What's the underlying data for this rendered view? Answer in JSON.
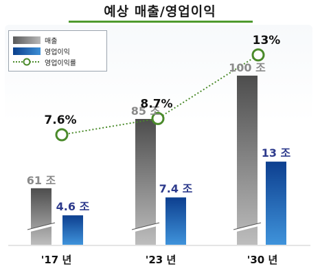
{
  "title": "예상 매출/영업이익",
  "legend": {
    "revenue": "매출",
    "operating_profit": "영업이익",
    "operating_margin": "영업이익률"
  },
  "colors": {
    "revenue_bar": "#7c7c7c",
    "profit_bar": "#1f6fc2",
    "margin_line": "#4a8a2a",
    "profit_label": "#2d3a8c",
    "revenue_label": "#8a8a8a",
    "title_rule": "#4e9a2e"
  },
  "chart_data": {
    "type": "bar",
    "categories": [
      "'17 년",
      "'23 년",
      "'30 년"
    ],
    "series": [
      {
        "name": "매출",
        "values": [
          61,
          85,
          100
        ],
        "labels": [
          "61 조",
          "85 조",
          "100 조"
        ]
      },
      {
        "name": "영업이익",
        "values": [
          4.6,
          7.4,
          13
        ],
        "labels": [
          "4.6 조",
          "7.4 조",
          "13 조"
        ]
      },
      {
        "name": "영업이익률",
        "type": "line",
        "values": [
          7.6,
          8.7,
          13
        ],
        "labels": [
          "7.6%",
          "8.7%",
          "13%"
        ]
      }
    ],
    "axis_break": true,
    "grid": false,
    "legend_position": "top-left"
  }
}
